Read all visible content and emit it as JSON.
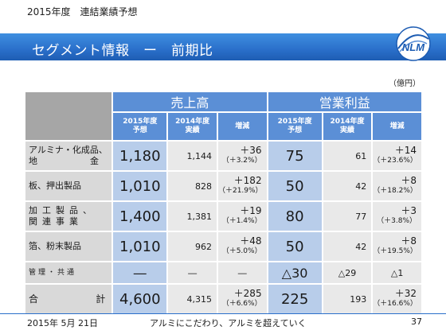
{
  "header": {
    "caption": "2015年度　連結業績予想",
    "title": "セグメント情報　ー　前期比",
    "logo_text": "NLM"
  },
  "unit": "（億円）",
  "table": {
    "groups": [
      "売上高",
      "営業利益"
    ],
    "subheaders": [
      [
        "2015年度",
        "予想"
      ],
      [
        "2014年度",
        "実績"
      ],
      [
        "増減"
      ],
      [
        "2015年度",
        "予想"
      ],
      [
        "2014年度",
        "実績"
      ],
      [
        "増減"
      ]
    ],
    "rows": [
      {
        "label_lines": [
          "アルミナ・化成品、",
          "地　　　　　　金"
        ],
        "sales_forecast": "1,180",
        "sales_actual": "1,144",
        "sales_change": "＋36",
        "sales_change_pct": "（＋3.2%）",
        "op_forecast": "75",
        "op_actual": "61",
        "op_change": "＋14",
        "op_change_pct": "（＋23.6%）"
      },
      {
        "label_lines": [
          "板、押出製品"
        ],
        "sales_forecast": "1,010",
        "sales_actual": "828",
        "sales_change": "＋182",
        "sales_change_pct": "（＋21.9%）",
        "op_forecast": "50",
        "op_actual": "42",
        "op_change": "＋8",
        "op_change_pct": "（＋18.2%）"
      },
      {
        "label_lines": [
          "加工製品、",
          "関連事業"
        ],
        "sales_forecast": "1,400",
        "sales_actual": "1,381",
        "sales_change": "＋19",
        "sales_change_pct": "（＋1.4%）",
        "op_forecast": "80",
        "op_actual": "77",
        "op_change": "＋3",
        "op_change_pct": "（＋3.8%）"
      },
      {
        "label_lines": [
          "箔、粉末製品"
        ],
        "sales_forecast": "1,010",
        "sales_actual": "962",
        "sales_change": "＋48",
        "sales_change_pct": "（＋5.0%）",
        "op_forecast": "50",
        "op_actual": "42",
        "op_change": "＋8",
        "op_change_pct": "（＋19.5%）"
      }
    ],
    "management": {
      "label": "管理・共通",
      "sales_forecast": "―",
      "sales_actual": "―",
      "sales_change": "―",
      "op_forecast": "△30",
      "op_actual": "△29",
      "op_change": "△1"
    },
    "total": {
      "label_left": "合",
      "label_right": "計",
      "sales_forecast": "4,600",
      "sales_actual": "4,315",
      "sales_change": "＋285",
      "sales_change_pct": "（＋6.6%）",
      "op_forecast": "225",
      "op_actual": "193",
      "op_change": "＋32",
      "op_change_pct": "（＋16.6%）"
    }
  },
  "footer": {
    "date": "2015年 5月 21日",
    "tagline": "アルミにこだわり、アルミを超えていく",
    "page": "37"
  },
  "colors": {
    "title_bar": "#2a6fca",
    "header_cell": "#5b8fd6",
    "forecast_cell": "#b8cdea",
    "label_cell": "#d9d9d9",
    "value_cell": "#e9e9e9"
  }
}
